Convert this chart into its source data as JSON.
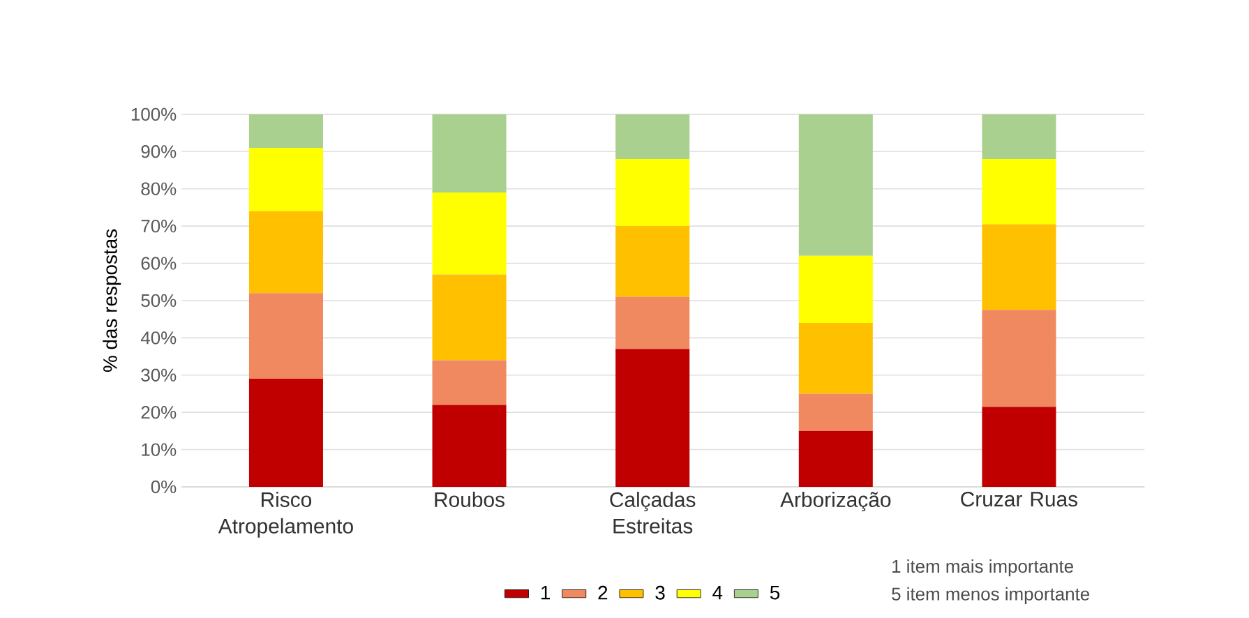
{
  "chart_data": {
    "type": "bar",
    "stacked": true,
    "ylabel": "% das respostas",
    "categories": [
      "Risco Atropelamento",
      "Roubos",
      "Calçadas Estreitas",
      "Arborização",
      "Cruzar Ruas"
    ],
    "series": [
      {
        "name": "1",
        "color": "#c00000",
        "values": [
          29,
          22,
          37,
          15,
          21.5
        ]
      },
      {
        "name": "2",
        "color": "#f08860",
        "values": [
          23,
          12,
          14,
          10,
          26
        ]
      },
      {
        "name": "3",
        "color": "#ffc000",
        "values": [
          22,
          23,
          19,
          19,
          23
        ]
      },
      {
        "name": "4",
        "color": "#ffff00",
        "values": [
          17,
          22,
          18,
          18,
          17.5
        ]
      },
      {
        "name": "5",
        "color": "#a9d08e",
        "values": [
          9,
          21,
          12,
          38,
          12
        ]
      }
    ],
    "ylim": [
      0,
      100
    ],
    "yticks": [
      {
        "value": 0,
        "label": "0%"
      },
      {
        "value": 10,
        "label": "10%"
      },
      {
        "value": 20,
        "label": "20%"
      },
      {
        "value": 30,
        "label": "30%"
      },
      {
        "value": 40,
        "label": "40%"
      },
      {
        "value": 50,
        "label": "50%"
      },
      {
        "value": 60,
        "label": "60%"
      },
      {
        "value": 70,
        "label": "70%"
      },
      {
        "value": 80,
        "label": "80%"
      },
      {
        "value": 90,
        "label": "90%"
      },
      {
        "value": 100,
        "label": "100%"
      }
    ],
    "grid": "y",
    "legend": "bottom",
    "annotations": [
      "1 item mais importante",
      "5 item menos importante"
    ]
  }
}
